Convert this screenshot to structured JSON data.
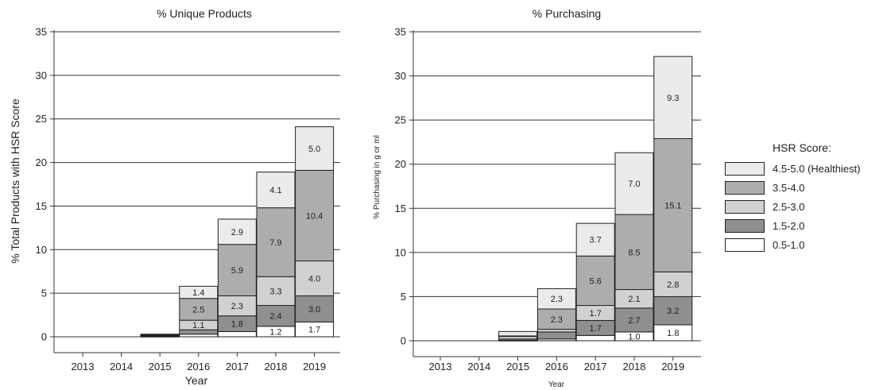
{
  "chart_data": [
    {
      "type": "bar",
      "stacked": true,
      "title": "% Unique Products",
      "xlabel": "Year",
      "ylabel": "% Total Products with HSR Score",
      "ylim": [
        0,
        35
      ],
      "yticks": [
        0,
        5,
        10,
        15,
        20,
        25,
        30,
        35
      ],
      "grid": "horizontal",
      "categories": [
        "2013",
        "2014",
        "2015",
        "2016",
        "2017",
        "2018",
        "2019"
      ],
      "series": [
        {
          "name": "0.5-1.0",
          "values": [
            0,
            0,
            0.05,
            0.3,
            0.6,
            1.2,
            1.7
          ],
          "labels": [
            "",
            "",
            "",
            "",
            "",
            "1.2",
            "1.7"
          ]
        },
        {
          "name": "1.5-2.0",
          "values": [
            0,
            0,
            0.1,
            0.5,
            1.8,
            2.4,
            3.0
          ],
          "labels": [
            "",
            "",
            "",
            "",
            "1.8",
            "2.4",
            "3.0"
          ]
        },
        {
          "name": "2.5-3.0",
          "values": [
            0,
            0,
            0.05,
            1.1,
            2.3,
            3.3,
            4.0
          ],
          "labels": [
            "",
            "",
            "",
            "1.1",
            "2.3",
            "3.3",
            "4.0"
          ]
        },
        {
          "name": "3.5-4.0",
          "values": [
            0,
            0,
            0.05,
            2.5,
            5.9,
            7.9,
            10.4
          ],
          "labels": [
            "",
            "",
            "",
            "2.5",
            "5.9",
            "7.9",
            "10.4"
          ]
        },
        {
          "name": "4.5-5.0 (Healthiest)",
          "values": [
            0,
            0,
            0.05,
            1.4,
            2.9,
            4.1,
            5.0
          ],
          "labels": [
            "",
            "",
            "",
            "1.4",
            "2.9",
            "4.1",
            "5.0"
          ]
        }
      ]
    },
    {
      "type": "bar",
      "stacked": true,
      "title": "% Purchasing",
      "xlabel": "Year",
      "ylabel": "% Purchasing in g or ml",
      "ylim": [
        0,
        35
      ],
      "yticks": [
        0,
        5,
        10,
        15,
        20,
        25,
        30,
        35
      ],
      "grid": "horizontal",
      "categories": [
        "2013",
        "2014",
        "2015",
        "2016",
        "2017",
        "2018",
        "2019"
      ],
      "series": [
        {
          "name": "0.5-1.0",
          "values": [
            0,
            0,
            0.05,
            0.2,
            0.6,
            1.0,
            1.8
          ],
          "labels": [
            "",
            "",
            "",
            "",
            "",
            "1.0",
            "1.8"
          ]
        },
        {
          "name": "1.5-2.0",
          "values": [
            0,
            0,
            0.15,
            0.8,
            1.7,
            2.7,
            3.2
          ],
          "labels": [
            "",
            "",
            "",
            "",
            "1.7",
            "2.7",
            "3.2"
          ]
        },
        {
          "name": "2.5-3.0",
          "values": [
            0,
            0,
            0.3,
            0.3,
            1.7,
            2.1,
            2.8
          ],
          "labels": [
            "",
            "",
            "",
            "",
            "1.7",
            "2.1",
            "2.8"
          ]
        },
        {
          "name": "3.5-4.0",
          "values": [
            0,
            0,
            0.05,
            2.3,
            5.6,
            8.5,
            15.1
          ],
          "labels": [
            "",
            "",
            "",
            "2.3",
            "5.6",
            "8.5",
            "15.1"
          ]
        },
        {
          "name": "4.5-5.0 (Healthiest)",
          "values": [
            0,
            0,
            0.5,
            2.3,
            3.7,
            7.0,
            9.3
          ],
          "labels": [
            "",
            "",
            "",
            "2.3",
            "3.7",
            "7.0",
            "9.3"
          ]
        }
      ]
    }
  ],
  "legend": {
    "title": "HSR Score:",
    "placement": "right",
    "items": [
      {
        "label": "4.5-5.0 (Healthiest)",
        "color": "#ebebeb"
      },
      {
        "label": "3.5-4.0",
        "color": "#adadad"
      },
      {
        "label": "2.5-3.0",
        "color": "#d1d1d1"
      },
      {
        "label": "1.5-2.0",
        "color": "#8f8f8f"
      },
      {
        "label": "0.5-1.0",
        "color": "#ffffff"
      }
    ]
  },
  "series_colors": {
    "0.5-1.0": "#ffffff",
    "1.5-2.0": "#8f8f8f",
    "2.5-3.0": "#d1d1d1",
    "3.5-4.0": "#adadad",
    "4.5-5.0 (Healthiest)": "#ebebeb"
  }
}
